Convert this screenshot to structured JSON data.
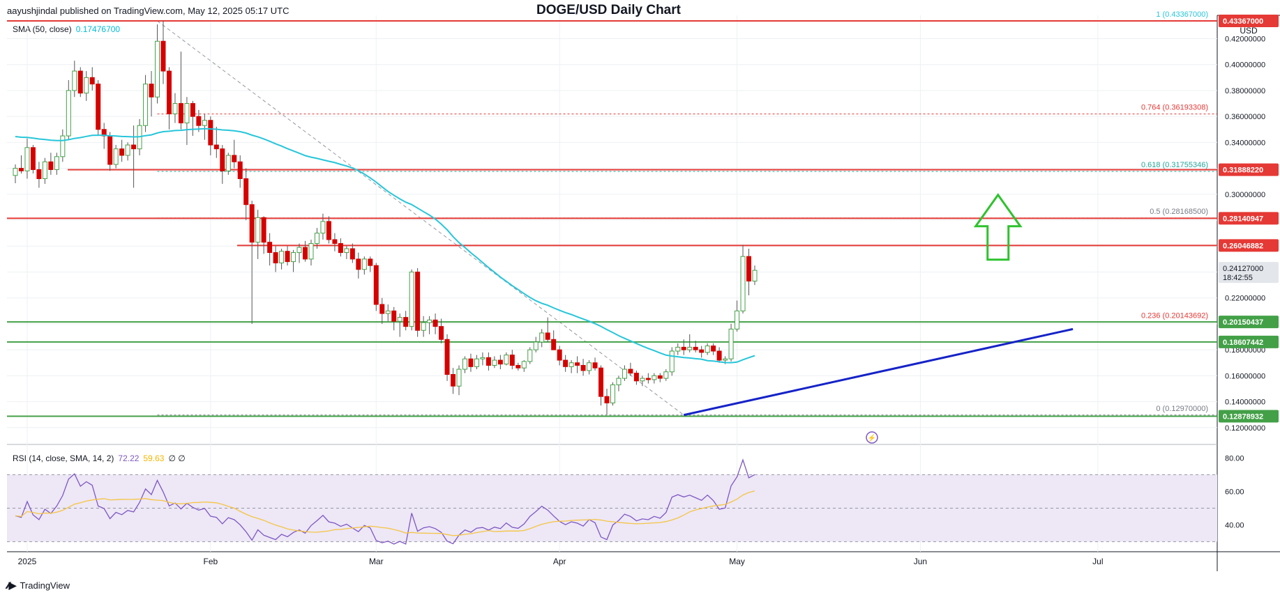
{
  "header": {
    "published": "aayushjindal published on TradingView.com, May 12, 2025 05:17 UTC",
    "title": "DOGE/USD Daily Chart",
    "currency": "USD"
  },
  "sma_legend": {
    "label": "SMA (50, close)",
    "value": "0.17476700"
  },
  "rsi_legend": {
    "label": "RSI (14, close, SMA, 14, 2)",
    "rsi": "72.22",
    "sma": "59.63",
    "extra": "∅ ∅"
  },
  "footer": {
    "brand": "TradingView",
    "logo_icon": "tradingview-logo-icon"
  },
  "colors": {
    "up": "#43a047",
    "down": "#d50000",
    "sma": "#26c6da",
    "resistance": "#e53935",
    "support": "#43a047",
    "trendline": "#1523c7",
    "arrow": "#2ec22e",
    "rsi": "#7e57c2",
    "rsi_sma": "#f5c542",
    "rsi_band": "#ede7f6"
  },
  "chart_data": [
    {
      "type": "candlestick",
      "title": "DOGE/USD Daily Chart",
      "x_ticks": [
        "2025",
        "Feb",
        "Mar",
        "Apr",
        "May",
        "Jun",
        "Jul"
      ],
      "y_ticks": [
        "0.12000000",
        "0.14000000",
        "0.16000000",
        "0.18000000",
        "0.20000000",
        "0.22000000",
        "0.24000000",
        "0.26000000",
        "0.28000000",
        "0.30000000",
        "0.32000000",
        "0.34000000",
        "0.36000000",
        "0.38000000",
        "0.40000000",
        "0.42000000"
      ],
      "ylim": [
        0.107,
        0.438
      ],
      "grid": true,
      "fib_levels": [
        {
          "label": "1 (0.43367000)",
          "value": 0.43367
        },
        {
          "label": "0.764 (0.36193308)",
          "value": 0.36193308
        },
        {
          "label": "0.618 (0.31755346)",
          "value": 0.31755346
        },
        {
          "label": "0.5 (0.28168500)",
          "value": 0.281685
        },
        {
          "label": "0.236 (0.20143692)",
          "value": 0.20143692
        },
        {
          "label": "0 (0.12970000)",
          "value": 0.1297
        }
      ],
      "horizontal_levels": [
        {
          "label": "0.43367000",
          "value": 0.43367,
          "kind": "resistance"
        },
        {
          "label": "0.31888220",
          "value": 0.3188822,
          "kind": "resistance"
        },
        {
          "label": "0.28140947",
          "value": 0.28140947,
          "kind": "resistance"
        },
        {
          "label": "0.26046882",
          "value": 0.26046882,
          "kind": "resistance"
        },
        {
          "label": "0.20150437",
          "value": 0.20150437,
          "kind": "support"
        },
        {
          "label": "0.18607442",
          "value": 0.18607442,
          "kind": "support"
        },
        {
          "label": "0.12878932",
          "value": 0.12878932,
          "kind": "support"
        }
      ],
      "last_price": {
        "price": "0.24127000",
        "countdown": "18:42:55",
        "value": 0.24127
      },
      "annotations": [
        {
          "type": "bullish-trendline",
          "from": {
            "date_index": 113,
            "value": 0.1297
          },
          "to": {
            "date_index": 171,
            "value": 0.196
          }
        },
        {
          "type": "up-arrow",
          "date_index": 162,
          "base": 0.2495,
          "tip": 0.2995
        },
        {
          "type": "fib-diagonal",
          "from": {
            "date_index": 24,
            "value": 0.43367
          },
          "to": {
            "date_index": 113,
            "value": 0.1297
          }
        }
      ],
      "series": [
        {
          "name": "DOGE/USD",
          "type": "candlestick",
          "start_date": "2024-12-30",
          "ohlc": [
            [
              0.3145,
              0.323,
              0.3085,
              0.32
            ],
            [
              0.32,
              0.33,
              0.316,
              0.318
            ],
            [
              0.318,
              0.343,
              0.312,
              0.336
            ],
            [
              0.336,
              0.338,
              0.316,
              0.319
            ],
            [
              0.319,
              0.325,
              0.305,
              0.312
            ],
            [
              0.312,
              0.328,
              0.308,
              0.325
            ],
            [
              0.325,
              0.332,
              0.315,
              0.319
            ],
            [
              0.319,
              0.332,
              0.315,
              0.329
            ],
            [
              0.329,
              0.35,
              0.325,
              0.345
            ],
            [
              0.345,
              0.388,
              0.342,
              0.38
            ],
            [
              0.38,
              0.403,
              0.375,
              0.395
            ],
            [
              0.395,
              0.398,
              0.375,
              0.378
            ],
            [
              0.378,
              0.395,
              0.372,
              0.39
            ],
            [
              0.39,
              0.398,
              0.38,
              0.385
            ],
            [
              0.385,
              0.388,
              0.345,
              0.35
            ],
            [
              0.35,
              0.355,
              0.335,
              0.345
            ],
            [
              0.345,
              0.348,
              0.318,
              0.323
            ],
            [
              0.323,
              0.338,
              0.32,
              0.335
            ],
            [
              0.335,
              0.342,
              0.325,
              0.33
            ],
            [
              0.33,
              0.34,
              0.326,
              0.338
            ],
            [
              0.338,
              0.353,
              0.305,
              0.335
            ],
            [
              0.335,
              0.358,
              0.33,
              0.353
            ],
            [
              0.353,
              0.392,
              0.348,
              0.385
            ],
            [
              0.385,
              0.395,
              0.36,
              0.375
            ],
            [
              0.375,
              0.431,
              0.37,
              0.418
            ],
            [
              0.418,
              0.434,
              0.385,
              0.395
            ],
            [
              0.395,
              0.398,
              0.35,
              0.362
            ],
            [
              0.362,
              0.378,
              0.355,
              0.37
            ],
            [
              0.37,
              0.41,
              0.35,
              0.355
            ],
            [
              0.355,
              0.375,
              0.338,
              0.37
            ],
            [
              0.37,
              0.372,
              0.345,
              0.36
            ],
            [
              0.36,
              0.365,
              0.348,
              0.353
            ],
            [
              0.353,
              0.362,
              0.342,
              0.357
            ],
            [
              0.357,
              0.36,
              0.33,
              0.338
            ],
            [
              0.338,
              0.352,
              0.328,
              0.335
            ],
            [
              0.335,
              0.338,
              0.308,
              0.318
            ],
            [
              0.318,
              0.332,
              0.315,
              0.33
            ],
            [
              0.33,
              0.342,
              0.32,
              0.325
            ],
            [
              0.325,
              0.33,
              0.305,
              0.312
            ],
            [
              0.312,
              0.32,
              0.28,
              0.292
            ],
            [
              0.292,
              0.295,
              0.2,
              0.263
            ],
            [
              0.263,
              0.288,
              0.25,
              0.282
            ],
            [
              0.282,
              0.283,
              0.254,
              0.263
            ],
            [
              0.263,
              0.27,
              0.245,
              0.255
            ],
            [
              0.255,
              0.26,
              0.24,
              0.247
            ],
            [
              0.247,
              0.258,
              0.242,
              0.256
            ],
            [
              0.256,
              0.26,
              0.245,
              0.248
            ],
            [
              0.248,
              0.257,
              0.24,
              0.255
            ],
            [
              0.255,
              0.262,
              0.247,
              0.259
            ],
            [
              0.259,
              0.264,
              0.248,
              0.25
            ],
            [
              0.25,
              0.265,
              0.245,
              0.262
            ],
            [
              0.262,
              0.274,
              0.258,
              0.27
            ],
            [
              0.27,
              0.285,
              0.265,
              0.279
            ],
            [
              0.279,
              0.283,
              0.262,
              0.265
            ],
            [
              0.265,
              0.27,
              0.256,
              0.262
            ],
            [
              0.262,
              0.266,
              0.252,
              0.255
            ],
            [
              0.255,
              0.26,
              0.25,
              0.258
            ],
            [
              0.258,
              0.262,
              0.247,
              0.25
            ],
            [
              0.25,
              0.255,
              0.235,
              0.242
            ],
            [
              0.242,
              0.252,
              0.238,
              0.25
            ],
            [
              0.25,
              0.252,
              0.24,
              0.245
            ],
            [
              0.245,
              0.247,
              0.21,
              0.215
            ],
            [
              0.215,
              0.22,
              0.2,
              0.208
            ],
            [
              0.208,
              0.215,
              0.202,
              0.21
            ],
            [
              0.21,
              0.213,
              0.195,
              0.202
            ],
            [
              0.202,
              0.208,
              0.19,
              0.205
            ],
            [
              0.205,
              0.21,
              0.195,
              0.198
            ],
            [
              0.198,
              0.242,
              0.195,
              0.24
            ],
            [
              0.24,
              0.243,
              0.19,
              0.195
            ],
            [
              0.195,
              0.206,
              0.19,
              0.201
            ],
            [
              0.201,
              0.206,
              0.192,
              0.203
            ],
            [
              0.203,
              0.208,
              0.192,
              0.198
            ],
            [
              0.198,
              0.204,
              0.185,
              0.188
            ],
            [
              0.188,
              0.192,
              0.156,
              0.161
            ],
            [
              0.161,
              0.166,
              0.146,
              0.152
            ],
            [
              0.152,
              0.168,
              0.145,
              0.165
            ],
            [
              0.165,
              0.175,
              0.162,
              0.173
            ],
            [
              0.173,
              0.177,
              0.163,
              0.167
            ],
            [
              0.167,
              0.176,
              0.165,
              0.173
            ],
            [
              0.173,
              0.178,
              0.168,
              0.174
            ],
            [
              0.174,
              0.178,
              0.164,
              0.168
            ],
            [
              0.168,
              0.175,
              0.166,
              0.172
            ],
            [
              0.172,
              0.176,
              0.165,
              0.169
            ],
            [
              0.169,
              0.178,
              0.168,
              0.176
            ],
            [
              0.176,
              0.18,
              0.165,
              0.168
            ],
            [
              0.168,
              0.17,
              0.164,
              0.166
            ],
            [
              0.166,
              0.172,
              0.163,
              0.171
            ],
            [
              0.171,
              0.182,
              0.169,
              0.18
            ],
            [
              0.18,
              0.19,
              0.178,
              0.186
            ],
            [
              0.186,
              0.196,
              0.182,
              0.193
            ],
            [
              0.193,
              0.205,
              0.186,
              0.188
            ],
            [
              0.188,
              0.195,
              0.18,
              0.18
            ],
            [
              0.18,
              0.183,
              0.168,
              0.172
            ],
            [
              0.172,
              0.176,
              0.163,
              0.167
            ],
            [
              0.167,
              0.172,
              0.162,
              0.17
            ],
            [
              0.17,
              0.175,
              0.162,
              0.168
            ],
            [
              0.168,
              0.173,
              0.16,
              0.164
            ],
            [
              0.164,
              0.172,
              0.161,
              0.17
            ],
            [
              0.17,
              0.174,
              0.164,
              0.166
            ],
            [
              0.166,
              0.168,
              0.137,
              0.144
            ],
            [
              0.144,
              0.15,
              0.13,
              0.139
            ],
            [
              0.139,
              0.155,
              0.137,
              0.153
            ],
            [
              0.153,
              0.16,
              0.148,
              0.158
            ],
            [
              0.158,
              0.168,
              0.156,
              0.165
            ],
            [
              0.165,
              0.17,
              0.16,
              0.162
            ],
            [
              0.162,
              0.164,
              0.153,
              0.156
            ],
            [
              0.156,
              0.16,
              0.152,
              0.158
            ],
            [
              0.158,
              0.162,
              0.154,
              0.157
            ],
            [
              0.157,
              0.162,
              0.154,
              0.16
            ],
            [
              0.16,
              0.162,
              0.155,
              0.158
            ],
            [
              0.158,
              0.165,
              0.156,
              0.163
            ],
            [
              0.163,
              0.182,
              0.16,
              0.179
            ],
            [
              0.179,
              0.185,
              0.176,
              0.182
            ],
            [
              0.182,
              0.188,
              0.176,
              0.18
            ],
            [
              0.18,
              0.192,
              0.178,
              0.182
            ],
            [
              0.182,
              0.187,
              0.178,
              0.18
            ],
            [
              0.18,
              0.183,
              0.174,
              0.178
            ],
            [
              0.178,
              0.185,
              0.176,
              0.183
            ],
            [
              0.183,
              0.185,
              0.176,
              0.179
            ],
            [
              0.179,
              0.182,
              0.17,
              0.172
            ],
            [
              0.172,
              0.175,
              0.169,
              0.173
            ],
            [
              0.173,
              0.2,
              0.171,
              0.196
            ],
            [
              0.196,
              0.218,
              0.194,
              0.21
            ],
            [
              0.21,
              0.261,
              0.208,
              0.252
            ],
            [
              0.252,
              0.258,
              0.222,
              0.233
            ],
            [
              0.233,
              0.245,
              0.23,
              0.2413
            ]
          ]
        },
        {
          "name": "SMA (50, close)",
          "type": "line",
          "last": 0.174767
        }
      ]
    },
    {
      "type": "line",
      "title": "RSI (14, close, SMA, 14, 2)",
      "y_ticks": [
        "40.00",
        "60.00",
        "80.00"
      ],
      "ylim": [
        24,
        88
      ],
      "bands": [
        30,
        50,
        70
      ],
      "series": [
        {
          "name": "RSI",
          "last": 72.22
        },
        {
          "name": "SMA",
          "last": 59.63
        }
      ]
    }
  ]
}
